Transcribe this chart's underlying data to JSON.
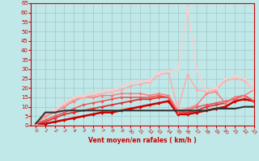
{
  "background_color": "#c0e8e8",
  "grid_color": "#a8cccc",
  "xlabel": "Vent moyen/en rafales ( km/h )",
  "xlabel_color": "#cc0000",
  "tick_color": "#cc0000",
  "xlim": [
    -0.5,
    23
  ],
  "ylim": [
    0,
    65
  ],
  "yticks": [
    0,
    5,
    10,
    15,
    20,
    25,
    30,
    35,
    40,
    45,
    50,
    55,
    60,
    65
  ],
  "xticks": [
    0,
    1,
    2,
    3,
    4,
    5,
    6,
    7,
    8,
    9,
    10,
    11,
    12,
    13,
    14,
    15,
    16,
    17,
    18,
    19,
    20,
    21,
    22,
    23
  ],
  "series": [
    {
      "x": [
        0,
        1,
        2,
        3,
        4,
        5,
        6,
        7,
        8,
        9,
        10,
        11,
        12,
        13,
        14,
        15,
        16,
        17,
        18,
        19,
        20,
        21,
        22,
        23
      ],
      "y": [
        1,
        1,
        2,
        3,
        4,
        5,
        6,
        7,
        7,
        8,
        9,
        10,
        11,
        12,
        13,
        6,
        6,
        7,
        8,
        9,
        10,
        13,
        14,
        13
      ],
      "color": "#cc0000",
      "lw": 1.8,
      "marker": "D",
      "ms": 2.0
    },
    {
      "x": [
        0,
        1,
        2,
        3,
        4,
        5,
        6,
        7,
        8,
        9,
        10,
        11,
        12,
        13,
        14,
        15,
        16,
        17,
        18,
        19,
        20,
        21,
        22,
        23
      ],
      "y": [
        1,
        2,
        4,
        6,
        7,
        8,
        9,
        10,
        11,
        12,
        13,
        14,
        14,
        15,
        15,
        7,
        7,
        8,
        10,
        11,
        12,
        15,
        16,
        13
      ],
      "color": "#dd3333",
      "lw": 1.3,
      "marker": "D",
      "ms": 1.8
    },
    {
      "x": [
        0,
        1,
        2,
        3,
        4,
        5,
        6,
        7,
        8,
        9,
        10,
        11,
        12,
        13,
        14,
        15,
        16,
        17,
        18,
        19,
        20,
        21,
        22,
        23
      ],
      "y": [
        1,
        3,
        5,
        7,
        9,
        11,
        12,
        13,
        14,
        15,
        15,
        15,
        15,
        16,
        15,
        7,
        8,
        10,
        11,
        12,
        13,
        14,
        16,
        13
      ],
      "color": "#ee5555",
      "lw": 1.1,
      "marker": "D",
      "ms": 1.8
    },
    {
      "x": [
        0,
        1,
        2,
        3,
        4,
        5,
        6,
        7,
        8,
        9,
        10,
        11,
        12,
        13,
        14,
        15,
        16,
        17,
        18,
        19,
        20,
        21,
        22,
        23
      ],
      "y": [
        1,
        5,
        7,
        10,
        13,
        15,
        15,
        16,
        16,
        17,
        17,
        17,
        16,
        17,
        16,
        8,
        9,
        11,
        17,
        18,
        12,
        15,
        16,
        19
      ],
      "color": "#ff7777",
      "lw": 1.0,
      "marker": "D",
      "ms": 1.8
    },
    {
      "x": [
        0,
        1,
        2,
        3,
        4,
        5,
        6,
        7,
        8,
        9,
        10,
        11,
        12,
        13,
        14,
        15,
        16,
        17,
        18,
        19,
        20,
        21,
        22,
        23
      ],
      "y": [
        1,
        6,
        8,
        11,
        14,
        15,
        16,
        17,
        18,
        19,
        21,
        22,
        23,
        27,
        28,
        9,
        27,
        19,
        18,
        19,
        24,
        25,
        24,
        19
      ],
      "color": "#ffaaaa",
      "lw": 1.0,
      "marker": "D",
      "ms": 1.8
    },
    {
      "x": [
        0,
        1,
        2,
        3,
        4,
        5,
        6,
        7,
        8,
        9,
        10,
        11,
        12,
        13,
        14,
        15,
        16,
        17,
        18,
        19,
        20,
        21,
        22,
        23
      ],
      "y": [
        1,
        7,
        8,
        12,
        15,
        16,
        17,
        18,
        19,
        21,
        23,
        24,
        24,
        28,
        29,
        30,
        63,
        29,
        19,
        20,
        25,
        26,
        25,
        19
      ],
      "color": "#ffcccc",
      "lw": 1.0,
      "marker": "D",
      "ms": 1.8
    },
    {
      "x": [
        0,
        1,
        2,
        3,
        4,
        5,
        6,
        7,
        8,
        9,
        10,
        11,
        12,
        13,
        14,
        15,
        16,
        17,
        18,
        19,
        20,
        21,
        22,
        23
      ],
      "y": [
        1,
        7,
        7,
        8,
        8,
        8,
        8,
        8,
        8,
        8,
        8,
        8,
        8,
        8,
        8,
        8,
        8,
        8,
        8,
        9,
        9,
        9,
        10,
        10
      ],
      "color": "#333333",
      "lw": 1.5,
      "marker": null,
      "ms": 0
    }
  ]
}
